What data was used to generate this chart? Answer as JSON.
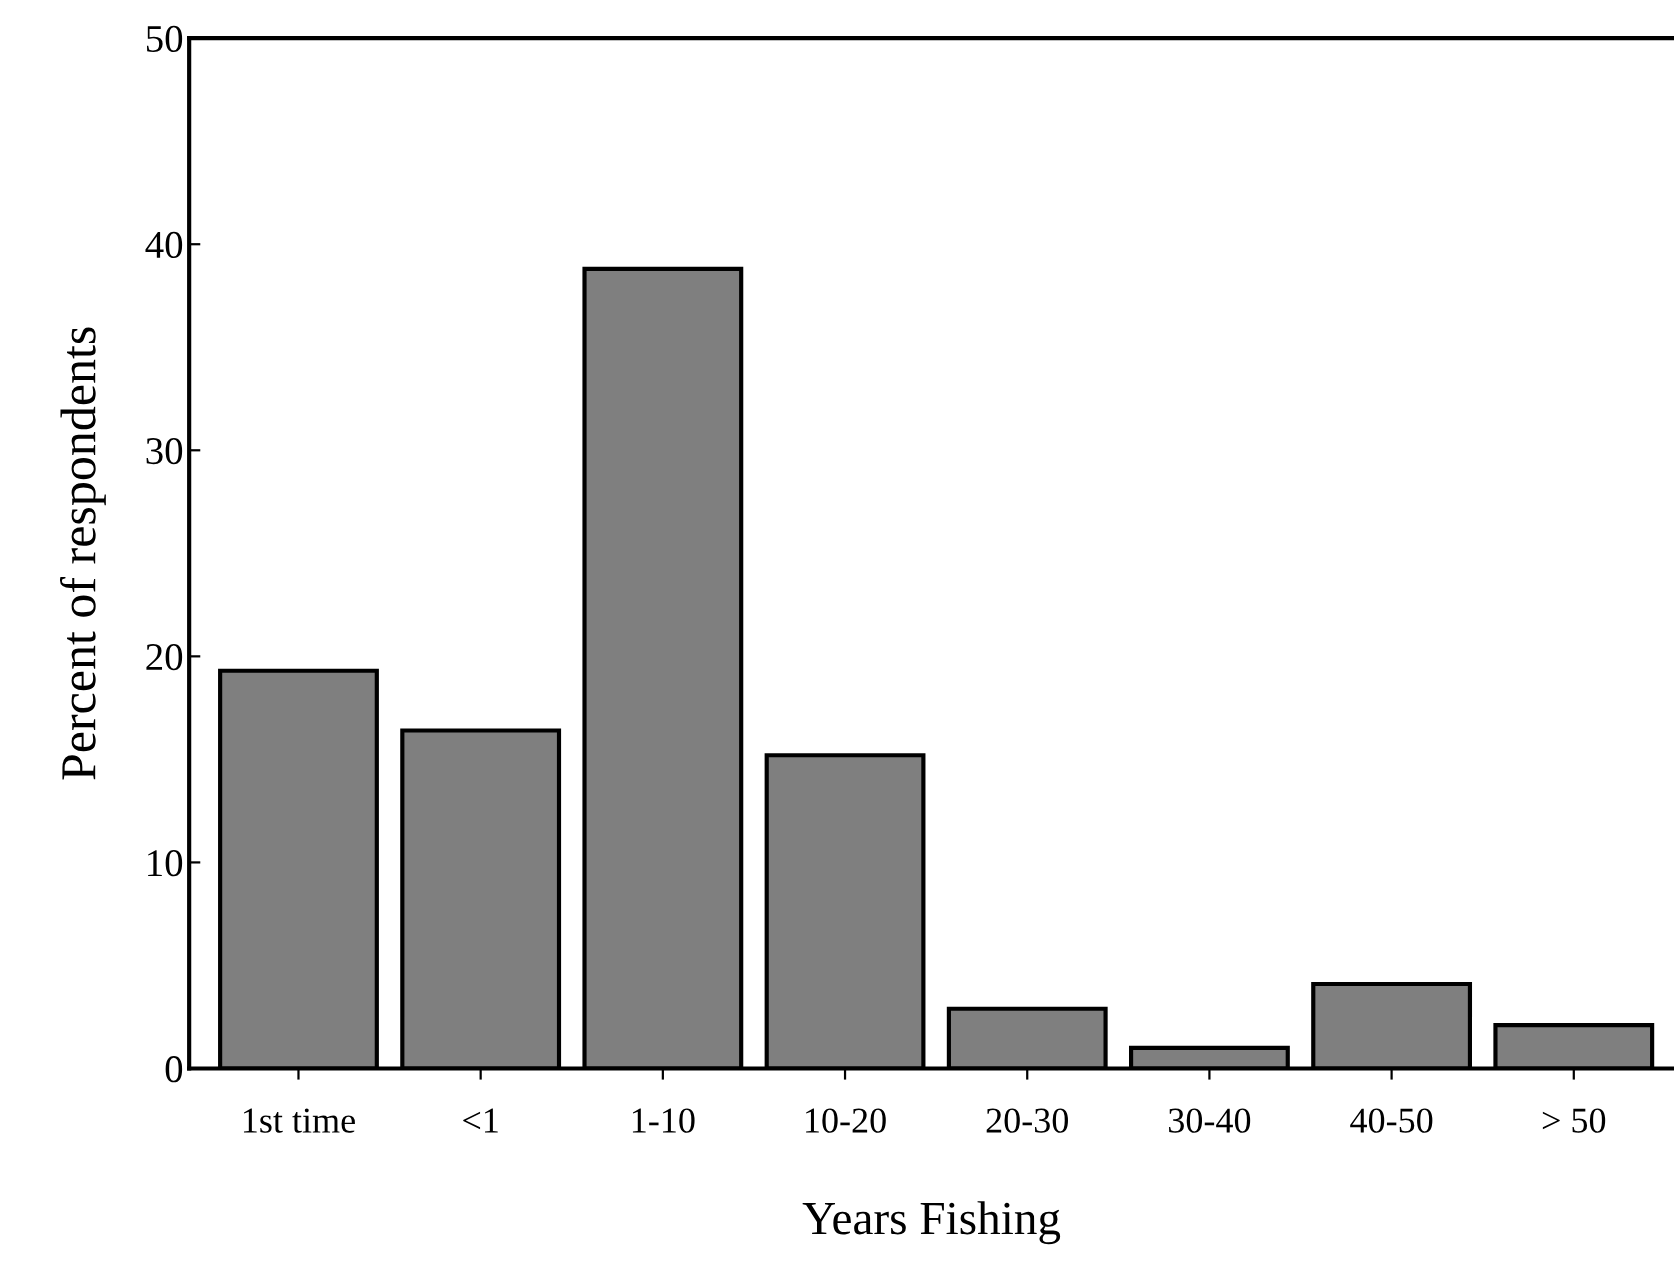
{
  "chart_data": {
    "type": "bar",
    "xlabel": "Years Fishing",
    "ylabel": "Percent of respondents",
    "categories": [
      "1st time",
      "<1",
      "1-10",
      "10-20",
      "20-30",
      "30-40",
      "40-50",
      "> 50"
    ],
    "values": [
      19.3,
      16.4,
      38.8,
      15.2,
      2.9,
      1.0,
      4.1,
      2.1
    ],
    "color": "#7f7f7f",
    "ylim": [
      0,
      50
    ],
    "yticks": [
      0,
      10,
      20,
      30,
      40,
      50
    ],
    "grid": false
  }
}
